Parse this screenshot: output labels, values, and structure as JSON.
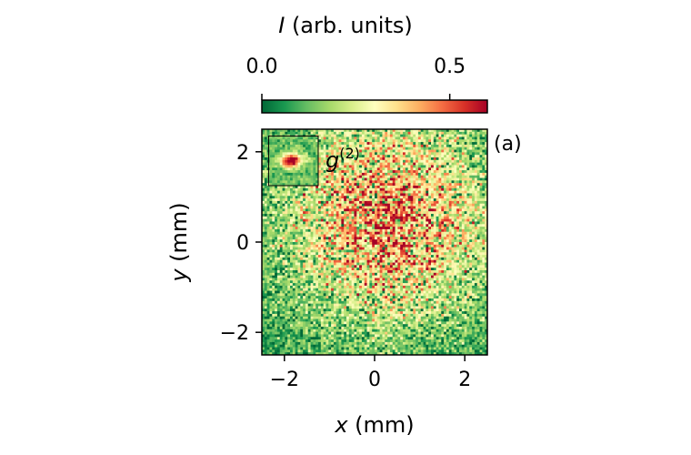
{
  "chart_data": {
    "type": "heatmap",
    "panel_label": "(a)",
    "inset_label": "g",
    "inset_label_superscript": "(2)",
    "xlabel_var": "x",
    "xlabel_unit": " (mm)",
    "ylabel_var": "y",
    "ylabel_unit": " (mm)",
    "xlim": [
      -2.5,
      2.5
    ],
    "ylim": [
      -2.5,
      2.5
    ],
    "xticks": [
      -2,
      0,
      2
    ],
    "yticks": [
      -2,
      0,
      2
    ],
    "xtick_labels": [
      "−2",
      "0",
      "2"
    ],
    "ytick_labels": [
      "−2",
      "0",
      "2"
    ],
    "colorbar": {
      "label_var": "I",
      "label_unit": " (arb. units)",
      "range": [
        0.0,
        0.6
      ],
      "ticks": [
        0.0,
        0.5
      ],
      "tick_labels": [
        "0.0",
        "0.5"
      ],
      "colormap": "RdYlGn_r",
      "position": "top"
    },
    "grid_size": [
      88,
      88
    ],
    "intensity_distribution": {
      "shape": "broad gaussian with shot noise",
      "center": [
        0.3,
        0.5
      ],
      "sigma_mm": 1.6,
      "peak": 0.6,
      "background": 0.06
    },
    "inset": {
      "region_x": [
        -2.35,
        -1.25
      ],
      "region_y": [
        1.25,
        2.35
      ],
      "peak_center": [
        -1.85,
        1.8
      ],
      "peak_value": 0.6
    },
    "colors": {
      "low": "#006837",
      "mid": "#ffffbf",
      "high": "#a50026"
    }
  }
}
